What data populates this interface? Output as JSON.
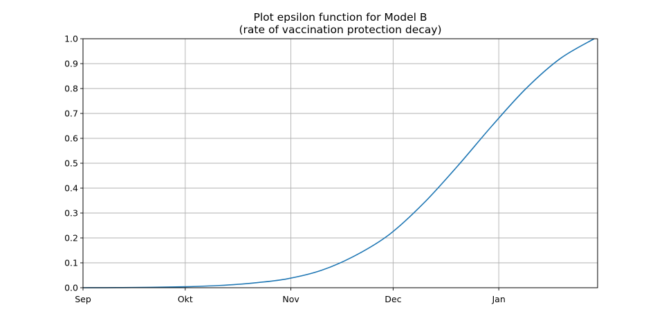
{
  "chart_data": {
    "type": "line",
    "title": "Plot epsilon function for Model B",
    "subtitle": "(rate of vaccination protection decay)",
    "xlabel": "",
    "ylabel": "",
    "x_axis": {
      "type": "date",
      "range": [
        "Sep",
        "end of Jan"
      ],
      "ticks": [
        "Sep",
        "Okt",
        "Nov",
        "Dec",
        "Jan"
      ]
    },
    "ylim": [
      0,
      1
    ],
    "y_ticks": [
      "0.0",
      "0.1",
      "0.2",
      "0.3",
      "0.4",
      "0.5",
      "0.6",
      "0.7",
      "0.8",
      "0.9",
      "1.0"
    ],
    "grid": true,
    "series": [
      {
        "color": "#1f77b4",
        "x": [
          "Sep 1",
          "Sep 11",
          "Sep 21",
          "Oct 1",
          "Oct 11",
          "Oct 21",
          "Oct 31",
          "Nov 10",
          "Nov 20",
          "Nov 30",
          "Dec 10",
          "Dec 20",
          "Dec 30",
          "Jan 9",
          "Jan 19",
          "Jan 29"
        ],
        "y": [
          0.0,
          0.0005,
          0.0015,
          0.004,
          0.009,
          0.019,
          0.036,
          0.07,
          0.13,
          0.215,
          0.34,
          0.49,
          0.65,
          0.8,
          0.92,
          1.0
        ]
      }
    ]
  }
}
